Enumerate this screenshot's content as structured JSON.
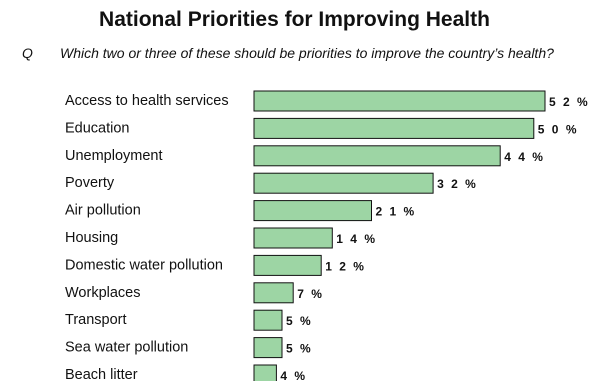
{
  "title": "National Priorities for Improving Health",
  "question_label": "Q",
  "question": "Which two or three of these should be priorities to improve the country’s health?",
  "colors": {
    "bar_fill": "#9dd5a4",
    "bar_stroke": "#111111"
  },
  "chart_data": {
    "type": "bar",
    "orientation": "horizontal",
    "title": "National Priorities for Improving Health",
    "categories": [
      "Access to health services",
      "Education",
      "Unemployment",
      "Poverty",
      "Air pollution",
      "Housing",
      "Domestic water pollution",
      "Workplaces",
      "Transport",
      "Sea water pollution",
      "Beach litter"
    ],
    "values": [
      52,
      50,
      44,
      32,
      21,
      14,
      12,
      7,
      5,
      5,
      4
    ],
    "value_labels": [
      "5 2 %",
      "5 0 %",
      "4 4 %",
      "3 2 %",
      "2 1 %",
      "1 4 %",
      "1 2 %",
      "7 %",
      "5 %",
      "5 %",
      "4 %"
    ],
    "unit": "%",
    "xlim": [
      0,
      52
    ],
    "grid": false,
    "legend": "none"
  }
}
